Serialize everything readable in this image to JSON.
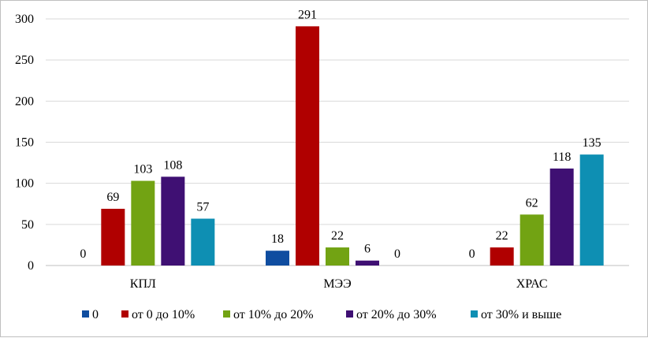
{
  "chart_data": {
    "type": "bar",
    "categories": [
      "КПЛ",
      "МЭЭ",
      "ХРАС"
    ],
    "series": [
      {
        "name": "0",
        "color": "#0f4da0",
        "values": [
          0,
          18,
          0
        ]
      },
      {
        "name": "от 0 до 10%",
        "color": "#b00000",
        "values": [
          69,
          291,
          22
        ]
      },
      {
        "name": "от 10% до 20%",
        "color": "#72a313",
        "values": [
          103,
          22,
          62
        ]
      },
      {
        "name": "от 20% до 30%",
        "color": "#3f1073",
        "values": [
          108,
          6,
          118
        ]
      },
      {
        "name": "от 30% и выше",
        "color": "#0e8fb3",
        "values": [
          57,
          0,
          135
        ]
      }
    ],
    "title": "",
    "xlabel": "",
    "ylabel": "",
    "ylim": [
      0,
      300
    ],
    "yticks": [
      0,
      50,
      100,
      150,
      200,
      250,
      300
    ],
    "grid": true,
    "legend_position": "bottom"
  }
}
